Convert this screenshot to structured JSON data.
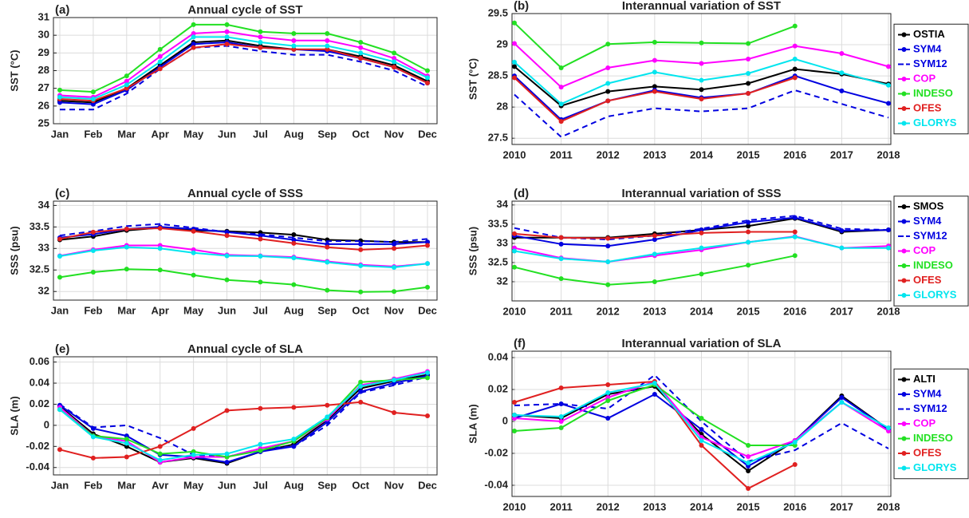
{
  "chart_data": [
    {
      "type": "line",
      "panel_label": "(a)",
      "title": "Annual cycle of SST",
      "ylabel": "SST (°C)",
      "categories": [
        "Jan",
        "Feb",
        "Mar",
        "Apr",
        "May",
        "Jun",
        "Jul",
        "Aug",
        "Sep",
        "Oct",
        "Nov",
        "Dec"
      ],
      "ylim": [
        25,
        31
      ],
      "yticks": [
        25,
        26,
        27,
        28,
        29,
        30,
        31
      ],
      "grid": true,
      "series": [
        {
          "color": "#000000",
          "values": [
            26.3,
            26.2,
            27.0,
            28.3,
            29.6,
            29.7,
            29.4,
            29.2,
            29.2,
            28.8,
            28.3,
            27.4
          ]
        },
        {
          "color": "#0000e0",
          "values": [
            26.2,
            26.1,
            26.9,
            28.2,
            29.5,
            29.6,
            29.3,
            29.2,
            29.1,
            28.7,
            28.2,
            27.3
          ]
        },
        {
          "color": "#0000e0",
          "dash": true,
          "values": [
            25.8,
            25.8,
            26.7,
            28.1,
            29.3,
            29.4,
            29.1,
            28.9,
            28.9,
            28.5,
            28.0,
            27.1
          ]
        },
        {
          "color": "#ff00ff",
          "values": [
            26.6,
            26.5,
            27.4,
            28.8,
            30.1,
            30.2,
            29.9,
            29.7,
            29.7,
            29.3,
            28.7,
            27.7
          ]
        },
        {
          "color": "#22e022",
          "values": [
            26.9,
            26.8,
            27.7,
            29.2,
            30.6,
            30.6,
            30.2,
            30.1,
            30.1,
            29.6,
            29.0,
            28.0
          ]
        },
        {
          "color": "#e02020",
          "values": [
            26.4,
            26.3,
            27.0,
            28.1,
            29.3,
            29.5,
            29.3,
            29.2,
            29.2,
            28.7,
            28.2,
            27.3
          ]
        },
        {
          "color": "#00e5ee",
          "values": [
            26.5,
            26.4,
            27.2,
            28.5,
            29.9,
            29.9,
            29.6,
            29.4,
            29.4,
            29.0,
            28.5,
            27.6
          ]
        }
      ]
    },
    {
      "type": "line",
      "panel_label": "(b)",
      "title": "Interannual variation of SST",
      "ylabel": "SST (°C)",
      "x": [
        2010,
        2011,
        2012,
        2013,
        2014,
        2015,
        2016,
        2017,
        2018
      ],
      "xlim": [
        2010,
        2018
      ],
      "xticks": [
        2010,
        2011,
        2012,
        2013,
        2014,
        2015,
        2016,
        2017,
        2018
      ],
      "ylim": [
        27.4,
        29.5
      ],
      "yticks": [
        27.5,
        28,
        28.5,
        29,
        29.5
      ],
      "grid": true,
      "legend": "right",
      "series": [
        {
          "name": "OSTIA",
          "color": "#000000",
          "values": [
            28.65,
            28.02,
            28.25,
            28.33,
            28.28,
            28.38,
            28.61,
            28.53,
            28.37
          ]
        },
        {
          "name": "SYM4",
          "color": "#0000e0",
          "values": [
            28.5,
            27.8,
            28.1,
            28.27,
            28.15,
            28.22,
            28.5,
            28.26,
            28.06
          ]
        },
        {
          "name": "SYM12",
          "color": "#0000e0",
          "dash": true,
          "values": [
            28.2,
            27.52,
            27.85,
            27.98,
            27.93,
            27.98,
            28.27,
            28.05,
            27.83
          ]
        },
        {
          "name": "COP",
          "color": "#ff00ff",
          "values": [
            29.02,
            28.32,
            28.63,
            28.75,
            28.7,
            28.77,
            28.98,
            28.86,
            28.65
          ]
        },
        {
          "name": "INDESO",
          "color": "#22e022",
          "values": [
            29.35,
            28.63,
            29.01,
            29.04,
            29.03,
            29.02,
            29.3,
            null,
            null
          ]
        },
        {
          "name": "OFES",
          "color": "#e02020",
          "values": [
            28.47,
            27.77,
            28.1,
            28.25,
            28.13,
            28.22,
            28.47,
            null,
            null
          ]
        },
        {
          "name": "GLORYS",
          "color": "#00e5ee",
          "values": [
            28.72,
            28.05,
            28.38,
            28.56,
            28.43,
            28.54,
            28.77,
            28.55,
            28.35
          ]
        }
      ]
    },
    {
      "type": "line",
      "panel_label": "(c)",
      "title": "Annual cycle of SSS",
      "ylabel": "SSS (psu)",
      "categories": [
        "Jan",
        "Feb",
        "Mar",
        "Apr",
        "May",
        "Jun",
        "Jul",
        "Aug",
        "Sep",
        "Oct",
        "Nov",
        "Dec"
      ],
      "ylim": [
        31.8,
        34.1
      ],
      "yticks": [
        32,
        32.5,
        33,
        33.5,
        34
      ],
      "grid": true,
      "series": [
        {
          "color": "#000000",
          "values": [
            33.2,
            33.28,
            33.42,
            33.48,
            33.42,
            33.4,
            33.37,
            33.32,
            33.2,
            33.18,
            33.15,
            33.15
          ]
        },
        {
          "color": "#0000e0",
          "values": [
            33.25,
            33.33,
            33.45,
            33.5,
            33.45,
            33.38,
            33.3,
            33.2,
            33.1,
            33.1,
            33.1,
            33.15
          ]
        },
        {
          "color": "#0000e0",
          "dash": true,
          "values": [
            33.3,
            33.4,
            33.52,
            33.57,
            33.48,
            33.38,
            33.33,
            33.25,
            33.17,
            33.17,
            33.15,
            33.22
          ]
        },
        {
          "color": "#ff00ff",
          "values": [
            32.83,
            32.97,
            33.07,
            33.07,
            32.97,
            32.85,
            32.83,
            32.8,
            32.7,
            32.62,
            32.58,
            32.65
          ]
        },
        {
          "color": "#22e022",
          "values": [
            32.33,
            32.45,
            32.52,
            32.5,
            32.38,
            32.27,
            32.22,
            32.16,
            32.03,
            31.99,
            32.0,
            32.1
          ]
        },
        {
          "color": "#e02020",
          "values": [
            33.22,
            33.38,
            33.45,
            33.47,
            33.4,
            33.3,
            33.22,
            33.12,
            33.03,
            32.97,
            33.0,
            33.07
          ]
        },
        {
          "color": "#00e5ee",
          "values": [
            32.82,
            32.95,
            33.03,
            33.0,
            32.9,
            32.83,
            32.82,
            32.78,
            32.68,
            32.6,
            32.56,
            32.65
          ]
        }
      ]
    },
    {
      "type": "line",
      "panel_label": "(d)",
      "title": "Interannual variation of SSS",
      "ylabel": "SSS (psu)",
      "x": [
        2010,
        2011,
        2012,
        2013,
        2014,
        2015,
        2016,
        2017,
        2018
      ],
      "xlim": [
        2010,
        2018
      ],
      "xticks": [
        2010,
        2011,
        2012,
        2013,
        2014,
        2015,
        2016,
        2017,
        2018
      ],
      "ylim": [
        31.5,
        34.1
      ],
      "yticks": [
        32,
        32.5,
        33,
        33.5,
        34
      ],
      "grid": true,
      "legend": "right",
      "series": [
        {
          "name": "SMOS",
          "color": "#000000",
          "values": [
            33.15,
            33.15,
            33.15,
            33.25,
            33.35,
            33.45,
            33.65,
            33.3,
            33.35
          ]
        },
        {
          "name": "SYM4",
          "color": "#0000e0",
          "values": [
            33.2,
            32.98,
            32.93,
            33.1,
            33.35,
            33.55,
            33.67,
            33.33,
            33.35
          ]
        },
        {
          "name": "SYM12",
          "color": "#0000e0",
          "dash": true,
          "values": [
            33.4,
            33.15,
            33.1,
            33.2,
            33.38,
            33.6,
            33.72,
            33.38,
            33.35
          ]
        },
        {
          "name": "COP",
          "color": "#ff00ff",
          "values": [
            32.88,
            32.62,
            32.52,
            32.68,
            32.83,
            33.03,
            33.18,
            32.88,
            32.93
          ]
        },
        {
          "name": "INDESO",
          "color": "#22e022",
          "values": [
            32.38,
            32.08,
            31.92,
            32.0,
            32.2,
            32.43,
            32.68,
            null,
            null
          ]
        },
        {
          "name": "OFES",
          "color": "#e02020",
          "values": [
            33.25,
            33.15,
            33.13,
            33.2,
            33.27,
            33.3,
            33.3,
            null,
            null
          ]
        },
        {
          "name": "GLORYS",
          "color": "#00e5ee",
          "values": [
            32.8,
            32.6,
            32.52,
            32.72,
            32.88,
            33.03,
            33.17,
            32.88,
            32.88
          ]
        }
      ]
    },
    {
      "type": "line",
      "panel_label": "(e)",
      "title": "Annual cycle of SLA",
      "ylabel": "SLA (m)",
      "categories": [
        "Jan",
        "Feb",
        "Mar",
        "Avr",
        "May",
        "Jun",
        "Jul",
        "Aug",
        "Sep",
        "Oct",
        "Nov",
        "Dec"
      ],
      "ylim": [
        -0.047,
        0.065
      ],
      "yticks": [
        -0.04,
        -0.02,
        0,
        0.02,
        0.04,
        0.06
      ],
      "grid": true,
      "series": [
        {
          "color": "#000000",
          "values": [
            0.018,
            -0.008,
            -0.02,
            -0.035,
            -0.031,
            -0.036,
            -0.025,
            -0.018,
            0.005,
            0.035,
            0.042,
            0.048
          ]
        },
        {
          "color": "#0000e0",
          "values": [
            0.019,
            -0.003,
            -0.01,
            -0.028,
            -0.03,
            -0.035,
            -0.025,
            -0.02,
            0.003,
            0.032,
            0.04,
            0.047
          ]
        },
        {
          "color": "#0000e0",
          "dash": true,
          "values": [
            0.02,
            -0.002,
            0.0,
            -0.012,
            -0.028,
            -0.03,
            -0.022,
            -0.02,
            0.0,
            0.031,
            0.038,
            0.046
          ]
        },
        {
          "color": "#ff00ff",
          "values": [
            0.017,
            -0.01,
            -0.015,
            -0.035,
            -0.03,
            -0.03,
            -0.022,
            -0.015,
            0.006,
            0.038,
            0.044,
            0.051
          ]
        },
        {
          "color": "#22e022",
          "values": [
            0.015,
            -0.01,
            -0.013,
            -0.027,
            -0.025,
            -0.03,
            -0.024,
            -0.015,
            0.007,
            0.041,
            0.043,
            0.045
          ]
        },
        {
          "color": "#e02020",
          "values": [
            -0.023,
            -0.031,
            -0.03,
            -0.02,
            -0.003,
            0.014,
            0.016,
            0.017,
            0.019,
            0.022,
            0.012,
            0.009
          ]
        },
        {
          "color": "#00e5ee",
          "values": [
            0.015,
            -0.011,
            -0.017,
            -0.033,
            -0.028,
            -0.027,
            -0.018,
            -0.013,
            0.008,
            0.037,
            0.043,
            0.05
          ]
        }
      ]
    },
    {
      "type": "line",
      "panel_label": "(f)",
      "title": "Interannual variation of SLA",
      "ylabel": "SLA (m)",
      "x": [
        2010,
        2011,
        2012,
        2013,
        2014,
        2015,
        2016,
        2017,
        2018
      ],
      "xlim": [
        2010,
        2018
      ],
      "xticks": [
        2010,
        2011,
        2012,
        2013,
        2014,
        2015,
        2016,
        2017,
        2018
      ],
      "ylim": [
        -0.047,
        0.044
      ],
      "yticks": [
        -0.04,
        -0.02,
        0,
        0.02,
        0.04
      ],
      "grid": true,
      "legend": "right",
      "series": [
        {
          "name": "ALTI",
          "color": "#000000",
          "values": [
            0.004,
            0.002,
            0.017,
            0.022,
            -0.008,
            -0.031,
            -0.012,
            0.016,
            -0.005
          ]
        },
        {
          "name": "SYM4",
          "color": "#0000e0",
          "values": [
            0.002,
            0.011,
            0.002,
            0.017,
            -0.005,
            -0.028,
            -0.012,
            0.015,
            -0.005
          ]
        },
        {
          "name": "SYM12",
          "color": "#0000e0",
          "dash": true,
          "values": [
            0.01,
            0.011,
            0.008,
            0.029,
            0.0,
            -0.025,
            -0.018,
            -0.001,
            -0.017
          ]
        },
        {
          "name": "COP",
          "color": "#ff00ff",
          "values": [
            0.002,
            0.0,
            0.015,
            0.025,
            -0.01,
            -0.022,
            -0.012,
            0.012,
            -0.006
          ]
        },
        {
          "name": "INDESO",
          "color": "#22e022",
          "values": [
            -0.006,
            -0.004,
            0.013,
            0.023,
            0.002,
            -0.015,
            -0.015,
            null,
            null
          ]
        },
        {
          "name": "OFES",
          "color": "#e02020",
          "values": [
            0.012,
            0.021,
            0.023,
            0.025,
            -0.015,
            -0.042,
            -0.027,
            null,
            null
          ]
        },
        {
          "name": "GLORYS",
          "color": "#00e5ee",
          "values": [
            0.004,
            0.003,
            0.018,
            0.024,
            -0.012,
            -0.026,
            -0.013,
            0.012,
            -0.004
          ]
        }
      ]
    }
  ]
}
